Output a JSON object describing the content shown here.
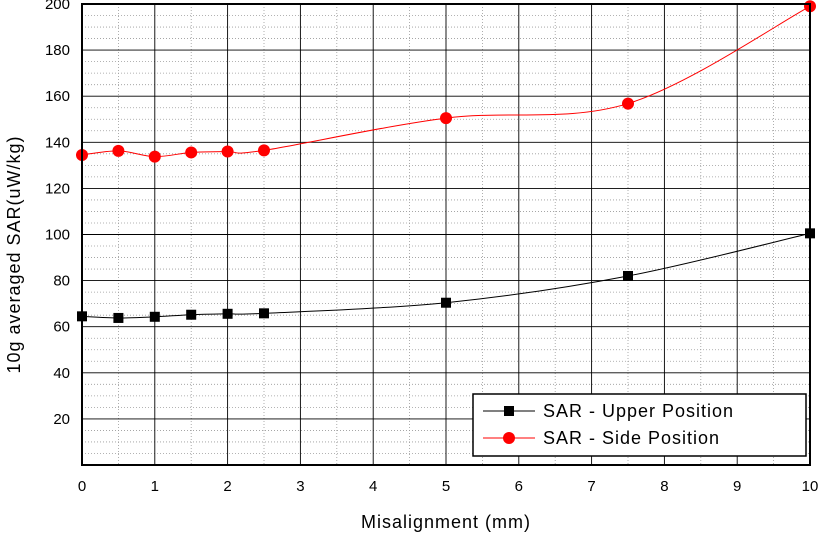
{
  "chart_data": {
    "type": "line",
    "title": "",
    "xlabel": "Misalignment (mm)",
    "ylabel": "10g averaged SAR(uW/kg)",
    "xlim": [
      0,
      10
    ],
    "ylim": [
      0,
      200
    ],
    "xticks": [
      0,
      1,
      2,
      3,
      4,
      5,
      6,
      7,
      8,
      9,
      10
    ],
    "yticks": [
      20,
      40,
      60,
      80,
      100,
      120,
      140,
      160,
      180,
      200
    ],
    "x_tick_labels": [
      "0",
      "1",
      "2",
      "3",
      "4",
      "5",
      "6",
      "7",
      "8",
      "9",
      "10"
    ],
    "y_tick_labels": [
      "20",
      "40",
      "60",
      "80",
      "100",
      "120",
      "140",
      "160",
      "180",
      "200"
    ],
    "grid": true,
    "legend_position": "bottom-right",
    "series": [
      {
        "name": "SAR - Upper Position",
        "marker": "square",
        "color": "#000000",
        "x": [
          0,
          0.5,
          1,
          1.5,
          2,
          2.5,
          5,
          7.5,
          10
        ],
        "y": [
          64.5,
          63.8,
          64.3,
          65.2,
          65.6,
          65.8,
          70.4,
          82,
          100.5
        ]
      },
      {
        "name": "SAR - Side Position",
        "marker": "circle",
        "color": "#ff0000",
        "x": [
          0,
          0.5,
          1,
          1.5,
          2,
          2.5,
          5,
          7.5,
          10
        ],
        "y": [
          134.5,
          136.3,
          133.8,
          135.6,
          136,
          136.5,
          150.5,
          156.8,
          199
        ]
      }
    ]
  }
}
